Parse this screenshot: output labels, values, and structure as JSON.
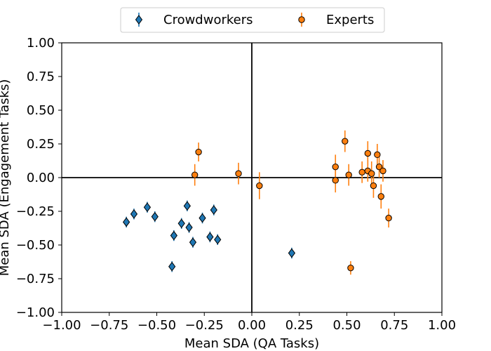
{
  "chart_data": {
    "type": "scatter",
    "xlabel": "Mean SDA (QA Tasks)",
    "ylabel": "Mean SDA (Engagement Tasks)",
    "xlim": [
      -1.0,
      1.0
    ],
    "ylim": [
      -1.0,
      1.0
    ],
    "x_ticks": [
      "−1.00",
      "−0.75",
      "−0.50",
      "−0.25",
      "0.00",
      "0.25",
      "0.50",
      "0.75",
      "1.00"
    ],
    "y_ticks": [
      "1.00",
      "0.75",
      "0.50",
      "0.25",
      "0.00",
      "−0.25",
      "−0.50",
      "−0.75",
      "−1.00"
    ],
    "x_tick_values": [
      -1.0,
      -0.75,
      -0.5,
      -0.25,
      0.0,
      0.25,
      0.5,
      0.75,
      1.0
    ],
    "y_tick_values": [
      1.0,
      0.75,
      0.5,
      0.25,
      0.0,
      -0.25,
      -0.5,
      -0.75,
      -1.0
    ],
    "grid": false,
    "reference_lines": {
      "x": 0.0,
      "y": 0.0
    },
    "legend_position": "top-center",
    "series": [
      {
        "name": "Crowdworkers",
        "marker": "diamond",
        "color": "#1f77b4",
        "points": [
          {
            "x": -0.66,
            "y": -0.33,
            "err": 0.04
          },
          {
            "x": -0.62,
            "y": -0.27,
            "err": 0.04
          },
          {
            "x": -0.55,
            "y": -0.22,
            "err": 0.04
          },
          {
            "x": -0.51,
            "y": -0.29,
            "err": 0.04
          },
          {
            "x": -0.41,
            "y": -0.43,
            "err": 0.04
          },
          {
            "x": -0.42,
            "y": -0.66,
            "err": 0.04
          },
          {
            "x": -0.37,
            "y": -0.34,
            "err": 0.04
          },
          {
            "x": -0.34,
            "y": -0.21,
            "err": 0.04
          },
          {
            "x": -0.33,
            "y": -0.37,
            "err": 0.04
          },
          {
            "x": -0.31,
            "y": -0.48,
            "err": 0.04
          },
          {
            "x": -0.26,
            "y": -0.3,
            "err": 0.04
          },
          {
            "x": -0.22,
            "y": -0.44,
            "err": 0.04
          },
          {
            "x": -0.2,
            "y": -0.24,
            "err": 0.04
          },
          {
            "x": -0.18,
            "y": -0.46,
            "err": 0.04
          },
          {
            "x": 0.21,
            "y": -0.56,
            "err": 0.04
          }
        ]
      },
      {
        "name": "Experts",
        "marker": "circle",
        "color": "#ff7f0e",
        "points": [
          {
            "x": -0.3,
            "y": 0.02,
            "err": 0.08
          },
          {
            "x": -0.28,
            "y": 0.19,
            "err": 0.07
          },
          {
            "x": -0.07,
            "y": 0.03,
            "err": 0.08
          },
          {
            "x": 0.04,
            "y": -0.06,
            "err": 0.1
          },
          {
            "x": 0.44,
            "y": -0.02,
            "err": 0.09
          },
          {
            "x": 0.44,
            "y": 0.08,
            "err": 0.09
          },
          {
            "x": 0.49,
            "y": 0.27,
            "err": 0.08
          },
          {
            "x": 0.51,
            "y": 0.02,
            "err": 0.08
          },
          {
            "x": 0.52,
            "y": -0.67,
            "err": 0.05
          },
          {
            "x": 0.58,
            "y": 0.04,
            "err": 0.08
          },
          {
            "x": 0.61,
            "y": 0.05,
            "err": 0.08
          },
          {
            "x": 0.61,
            "y": 0.18,
            "err": 0.09
          },
          {
            "x": 0.63,
            "y": 0.03,
            "err": 0.09
          },
          {
            "x": 0.64,
            "y": -0.06,
            "err": 0.09
          },
          {
            "x": 0.66,
            "y": 0.17,
            "err": 0.08
          },
          {
            "x": 0.67,
            "y": 0.08,
            "err": 0.08
          },
          {
            "x": 0.68,
            "y": -0.14,
            "err": 0.09
          },
          {
            "x": 0.69,
            "y": 0.05,
            "err": 0.08
          },
          {
            "x": 0.72,
            "y": -0.3,
            "err": 0.07
          }
        ]
      }
    ]
  }
}
